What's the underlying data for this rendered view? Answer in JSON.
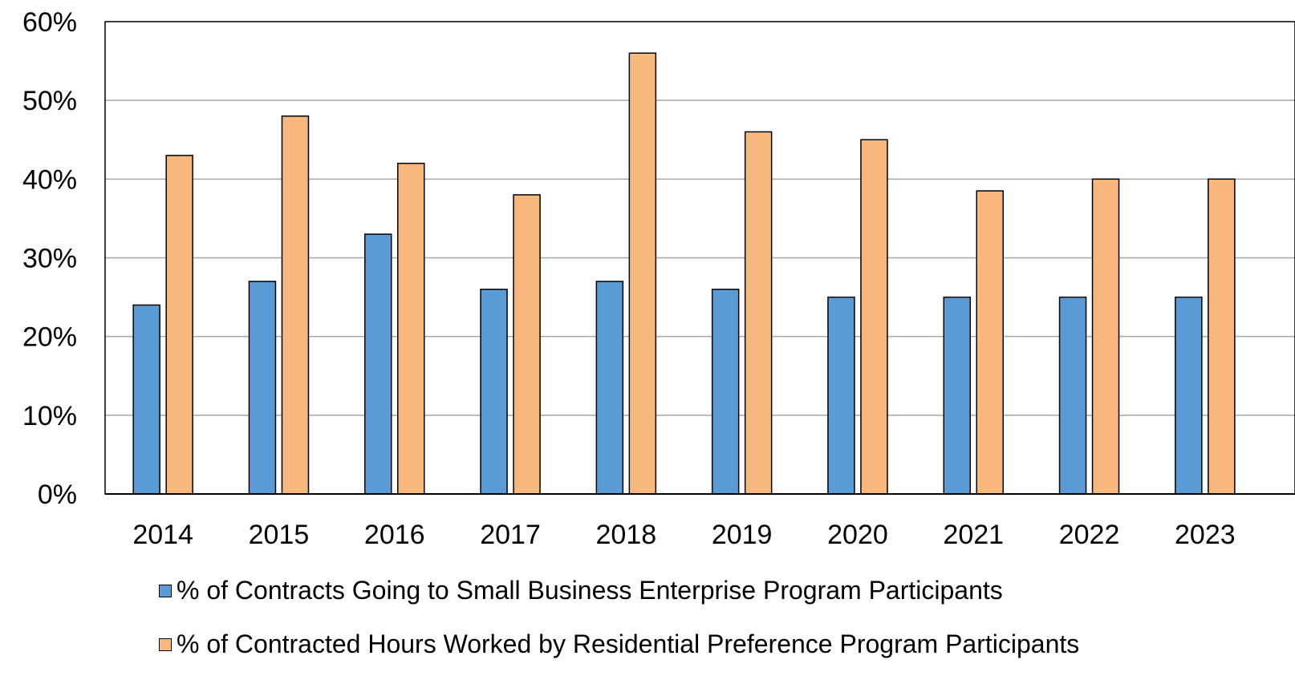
{
  "chart_data": {
    "type": "bar",
    "categories": [
      "2014",
      "2015",
      "2016",
      "2017",
      "2018",
      "2019",
      "2020",
      "2021",
      "2022",
      "2023"
    ],
    "series": [
      {
        "name": "% of Contracts Going to Small Business Enterprise Program Participants",
        "color": "#5B9BD5",
        "values": [
          24,
          27,
          33,
          26,
          27,
          26,
          25,
          25,
          25,
          25
        ]
      },
      {
        "name": "% of Contracted Hours Worked by Residential Preference Program Participants",
        "color": "#F8B77C",
        "values": [
          43,
          48,
          42,
          38,
          56,
          46,
          45,
          38.5,
          40,
          40
        ]
      }
    ],
    "ylim": [
      0,
      60
    ],
    "yticks": [
      "0%",
      "10%",
      "20%",
      "30%",
      "40%",
      "50%",
      "60%"
    ],
    "ytick_values": [
      0,
      10,
      20,
      30,
      40,
      50,
      60
    ],
    "grid": true,
    "legend": "bottom",
    "title": "",
    "xlabel": "",
    "ylabel": ""
  }
}
